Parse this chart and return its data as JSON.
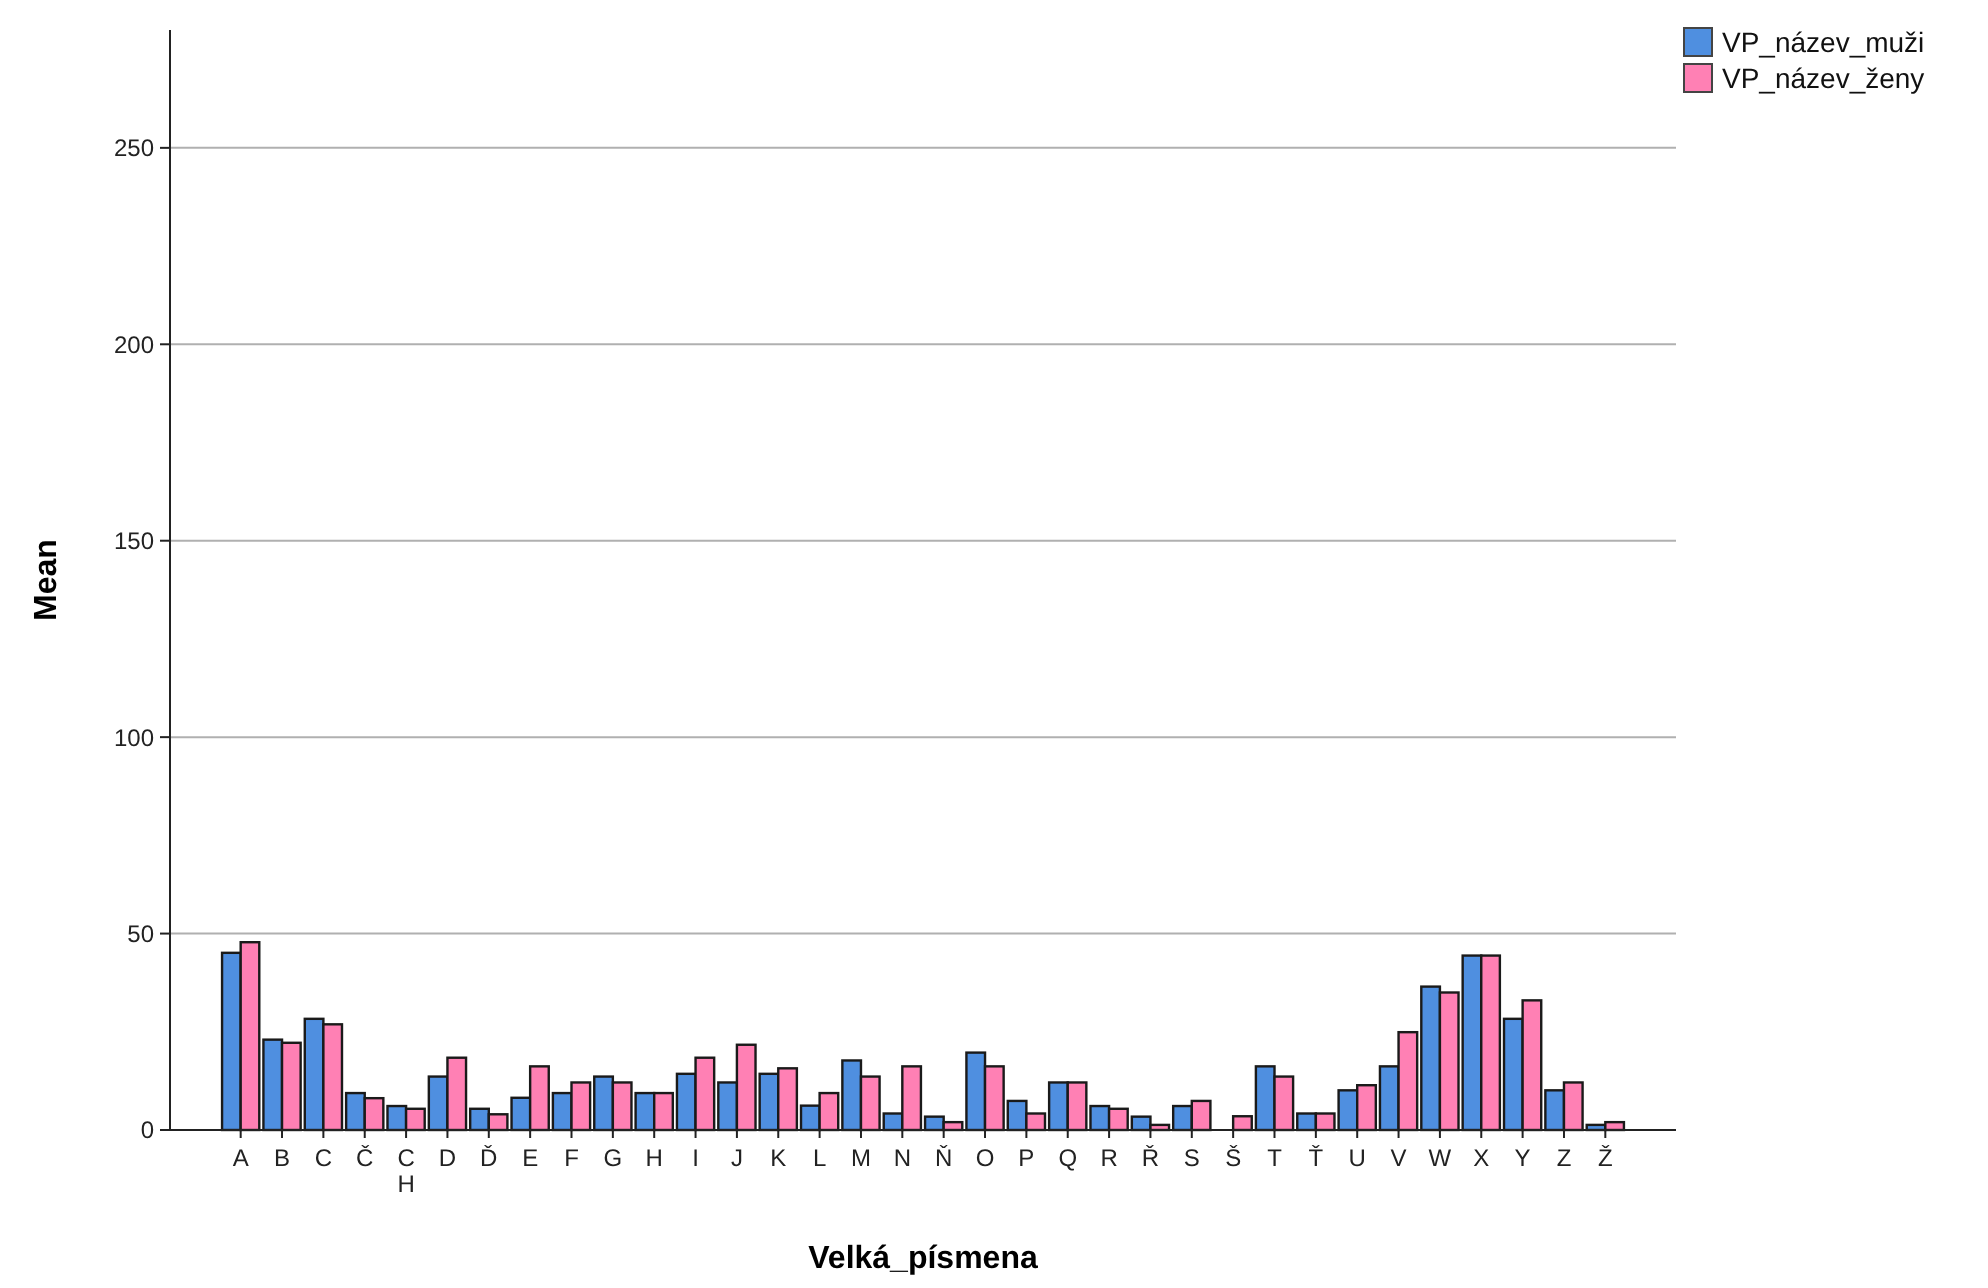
{
  "chart_data": {
    "type": "bar",
    "xlabel": "Velká_písmena",
    "ylabel": "Mean",
    "categories": [
      "A",
      "B",
      "C",
      "Č",
      "CH",
      "D",
      "Ď",
      "E",
      "F",
      "G",
      "H",
      "I",
      "J",
      "K",
      "L",
      "M",
      "N",
      "Ň",
      "O",
      "P",
      "Q",
      "R",
      "Ř",
      "S",
      "Š",
      "T",
      "Ť",
      "U",
      "V",
      "W",
      "X",
      "Y",
      "Z",
      "Ž"
    ],
    "series": [
      {
        "name": "VP_název_muži",
        "color": "#4f8fe0",
        "values": [
          45.1,
          23,
          28.3,
          9.4,
          6.1,
          13.6,
          5.4,
          8.2,
          9.4,
          13.6,
          9.4,
          14.3,
          12.1,
          14.3,
          6.2,
          17.7,
          4.2,
          3.4,
          19.7,
          7.4,
          12.1,
          6.1,
          3.4,
          6.1,
          null,
          16.2,
          4.2,
          10.1,
          16.2,
          36.5,
          44.4,
          28.3,
          10.1,
          1.3
        ]
      },
      {
        "name": "VP_název_ženy",
        "color": "#ff80b4",
        "values": [
          47.8,
          22.2,
          26.9,
          8.1,
          5.4,
          18.4,
          4,
          16.2,
          12.1,
          12.1,
          9.4,
          18.4,
          21.7,
          15.7,
          9.4,
          13.6,
          16.2,
          2,
          16.2,
          4.2,
          12.1,
          5.4,
          1.3,
          7.4,
          3.5,
          13.6,
          4.2,
          11.4,
          24.9,
          35,
          44.4,
          33,
          12.1,
          2
        ]
      }
    ],
    "ylim": [
      0,
      280
    ],
    "yticks": [
      0,
      50,
      100,
      150,
      200,
      250
    ],
    "grid": "y",
    "legend": "top right"
  }
}
